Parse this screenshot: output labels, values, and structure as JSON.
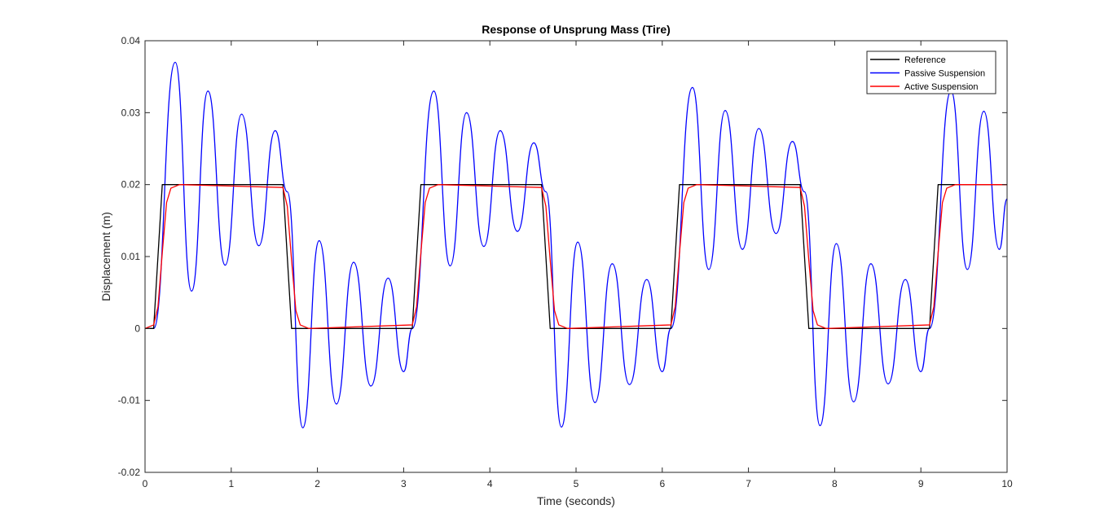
{
  "chart_data": {
    "type": "line",
    "title": "Response of Unsprung Mass (Tire)",
    "xlabel": "Time (seconds)",
    "ylabel": "Displacement (m)",
    "xlim": [
      0,
      10
    ],
    "ylim": [
      -0.02,
      0.04
    ],
    "xticks": [
      0,
      1,
      2,
      3,
      4,
      5,
      6,
      7,
      8,
      9,
      10
    ],
    "xtick_labels": [
      "0",
      "1",
      "2",
      "3",
      "4",
      "5",
      "6",
      "7",
      "8",
      "9",
      "10"
    ],
    "yticks": [
      -0.02,
      -0.01,
      0,
      0.01,
      0.02,
      0.03,
      0.04
    ],
    "ytick_labels": [
      "-0.02",
      "-0.01",
      "0",
      "0.01",
      "0.02",
      "0.03",
      "0.04"
    ],
    "grid": false,
    "legend_position": "top-right",
    "series": [
      {
        "name": "Reference",
        "color": "#000000",
        "x": [
          0,
          0.1,
          0.2,
          1.6,
          1.7,
          3.1,
          3.2,
          4.6,
          4.7,
          6.1,
          6.2,
          7.6,
          7.7,
          9.1,
          9.2,
          10
        ],
        "y": [
          0,
          0,
          0.02,
          0.02,
          0,
          0,
          0.02,
          0.02,
          0,
          0,
          0.02,
          0.02,
          0,
          0,
          0.02,
          0.02
        ]
      },
      {
        "name": "Passive Suspension",
        "color": "#0000ff",
        "x": [
          0,
          0.1,
          0.35,
          0.54,
          0.73,
          0.93,
          1.12,
          1.32,
          1.51,
          1.65,
          1.83,
          2.02,
          2.22,
          2.42,
          2.62,
          2.82,
          3.0,
          3.1,
          3.35,
          3.54,
          3.73,
          3.93,
          4.12,
          4.32,
          4.51,
          4.65,
          4.83,
          5.02,
          5.22,
          5.42,
          5.62,
          5.82,
          6.0,
          6.1,
          6.35,
          6.54,
          6.73,
          6.93,
          7.12,
          7.32,
          7.51,
          7.65,
          7.83,
          8.02,
          8.22,
          8.42,
          8.62,
          8.82,
          9.0,
          9.1,
          9.35,
          9.54,
          9.73,
          9.91,
          10.0
        ],
        "y": [
          0,
          0,
          0.037,
          0.0052,
          0.033,
          0.0088,
          0.0298,
          0.0115,
          0.0275,
          0.019,
          -0.0138,
          0.0122,
          -0.0105,
          0.0092,
          -0.008,
          0.007,
          -0.006,
          0.0,
          0.033,
          0.0087,
          0.03,
          0.0114,
          0.0275,
          0.0135,
          0.0258,
          0.019,
          -0.0137,
          0.012,
          -0.0103,
          0.009,
          -0.0078,
          0.0068,
          -0.006,
          0.0,
          0.0335,
          0.0082,
          0.0303,
          0.011,
          0.0278,
          0.0132,
          0.026,
          0.019,
          -0.0135,
          0.0118,
          -0.0102,
          0.009,
          -0.0077,
          0.0068,
          -0.006,
          0.0,
          0.033,
          0.0082,
          0.0302,
          0.011,
          0.018
        ]
      },
      {
        "name": "Active Suspension",
        "color": "#ff0000",
        "x": [
          0,
          0.1,
          0.15,
          0.2,
          0.25,
          0.3,
          0.4,
          1.6,
          1.65,
          1.7,
          1.75,
          1.8,
          1.9,
          3.1,
          3.15,
          3.2,
          3.25,
          3.3,
          3.4,
          4.6,
          4.65,
          4.7,
          4.75,
          4.8,
          4.9,
          6.1,
          6.15,
          6.2,
          6.25,
          6.3,
          6.4,
          7.6,
          7.65,
          7.7,
          7.75,
          7.8,
          7.9,
          9.1,
          9.15,
          9.2,
          9.25,
          9.3,
          9.4,
          10.0
        ],
        "y": [
          0,
          0.0005,
          0.003,
          0.0105,
          0.0175,
          0.0195,
          0.02,
          0.0196,
          0.017,
          0.0095,
          0.0025,
          0.0005,
          0,
          0.0005,
          0.003,
          0.0105,
          0.0175,
          0.0195,
          0.02,
          0.0196,
          0.017,
          0.0095,
          0.0025,
          0.0005,
          0,
          0.0005,
          0.003,
          0.0105,
          0.0175,
          0.0195,
          0.02,
          0.0196,
          0.017,
          0.0095,
          0.0025,
          0.0005,
          0,
          0.0005,
          0.003,
          0.0105,
          0.0175,
          0.0195,
          0.02,
          0.02
        ]
      }
    ]
  }
}
